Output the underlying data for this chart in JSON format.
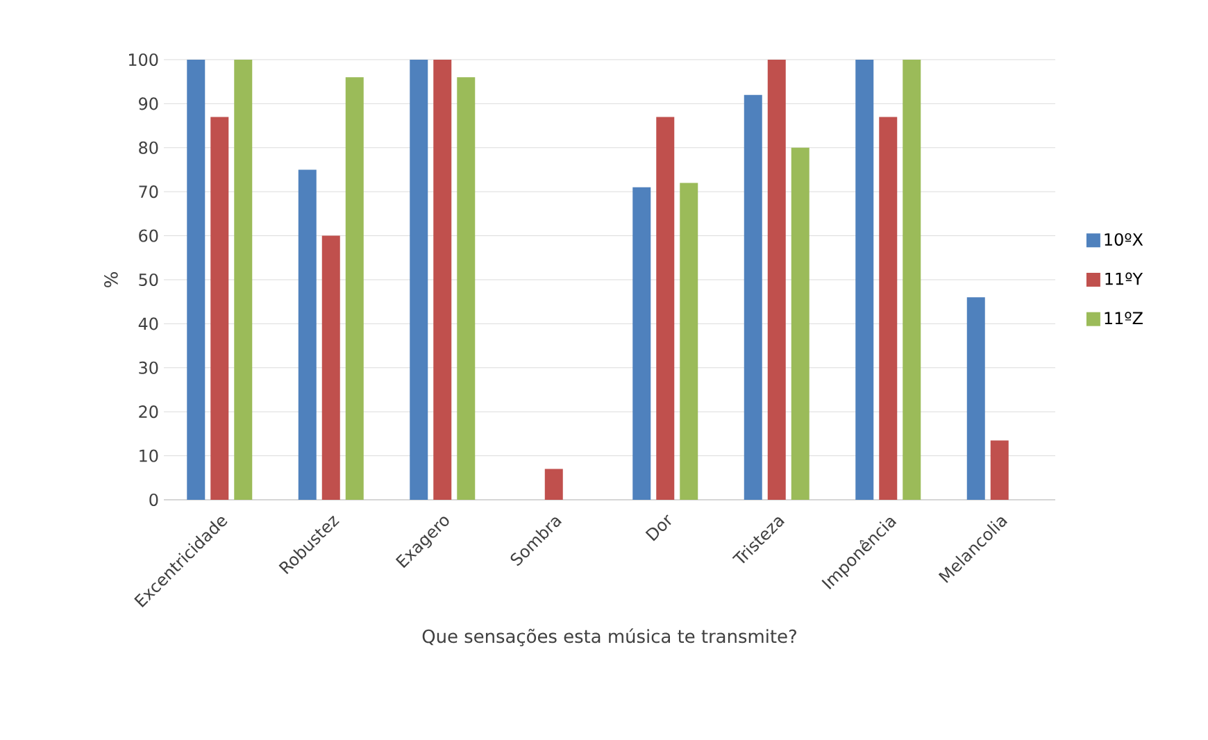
{
  "chart_data": {
    "type": "bar",
    "xlabel": "Que sensações esta música te transmite?",
    "ylabel": "%",
    "categories": [
      "Excentricidade",
      "Robustez",
      "Exagero",
      "Sombra",
      "Dor",
      "Tristeza",
      "Imponência",
      "Melancolia"
    ],
    "series": [
      {
        "name": "10ºX",
        "color": "#4f81bd",
        "values": [
          100,
          75,
          100,
          0,
          71,
          92,
          100,
          46
        ]
      },
      {
        "name": "11ºY",
        "color": "#c0504d",
        "values": [
          87,
          60,
          100,
          7,
          87,
          100,
          87,
          13.5
        ]
      },
      {
        "name": "11ºZ",
        "color": "#9bbb59",
        "values": [
          100,
          96,
          96,
          0,
          72,
          80,
          100,
          0
        ]
      }
    ],
    "ylim": [
      0,
      100
    ],
    "yticks": [
      0,
      10,
      20,
      30,
      40,
      50,
      60,
      70,
      80,
      90,
      100
    ],
    "grid": "y",
    "legend": "right"
  }
}
